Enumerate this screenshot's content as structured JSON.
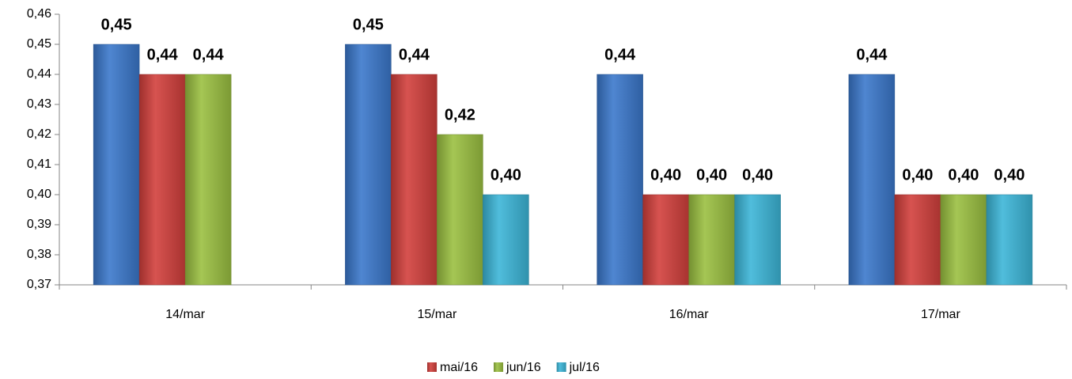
{
  "chart_data": {
    "type": "bar",
    "categories": [
      "14/mar",
      "15/mar",
      "16/mar",
      "17/mar"
    ],
    "series": [
      {
        "color": "#3b78cc",
        "values": [
          0.45,
          0.45,
          0.44,
          0.44
        ],
        "value_labels": [
          "0,45",
          "0,45",
          "0,44",
          "0,44"
        ]
      },
      {
        "name": "mai/16",
        "color": "#d2403c",
        "values": [
          0.44,
          0.44,
          0.4,
          0.4
        ],
        "value_labels": [
          "0,44",
          "0,44",
          "0,40",
          "0,40"
        ]
      },
      {
        "name": "jun/16",
        "color": "#9bc041",
        "values": [
          0.44,
          0.42,
          0.4,
          0.4
        ],
        "value_labels": [
          "0,44",
          "0,42",
          "0,40",
          "0,40"
        ]
      },
      {
        "name": "jul/16",
        "color": "#3cb6d8",
        "values": [
          null,
          0.4,
          0.4,
          0.4
        ],
        "value_labels": [
          null,
          "0,40",
          "0,40",
          "0,40"
        ]
      }
    ],
    "ylim": [
      0.37,
      0.46
    ],
    "yticks": [
      {
        "value": 0.37,
        "label": "0,37"
      },
      {
        "value": 0.38,
        "label": "0,38"
      },
      {
        "value": 0.39,
        "label": "0,39"
      },
      {
        "value": 0.4,
        "label": "0,40"
      },
      {
        "value": 0.41,
        "label": "0,41"
      },
      {
        "value": 0.42,
        "label": "0,42"
      },
      {
        "value": 0.43,
        "label": "0,43"
      },
      {
        "value": 0.44,
        "label": "0,44"
      },
      {
        "value": 0.45,
        "label": "0,45"
      },
      {
        "value": 0.46,
        "label": "0,46"
      }
    ],
    "legend": "bottom"
  }
}
